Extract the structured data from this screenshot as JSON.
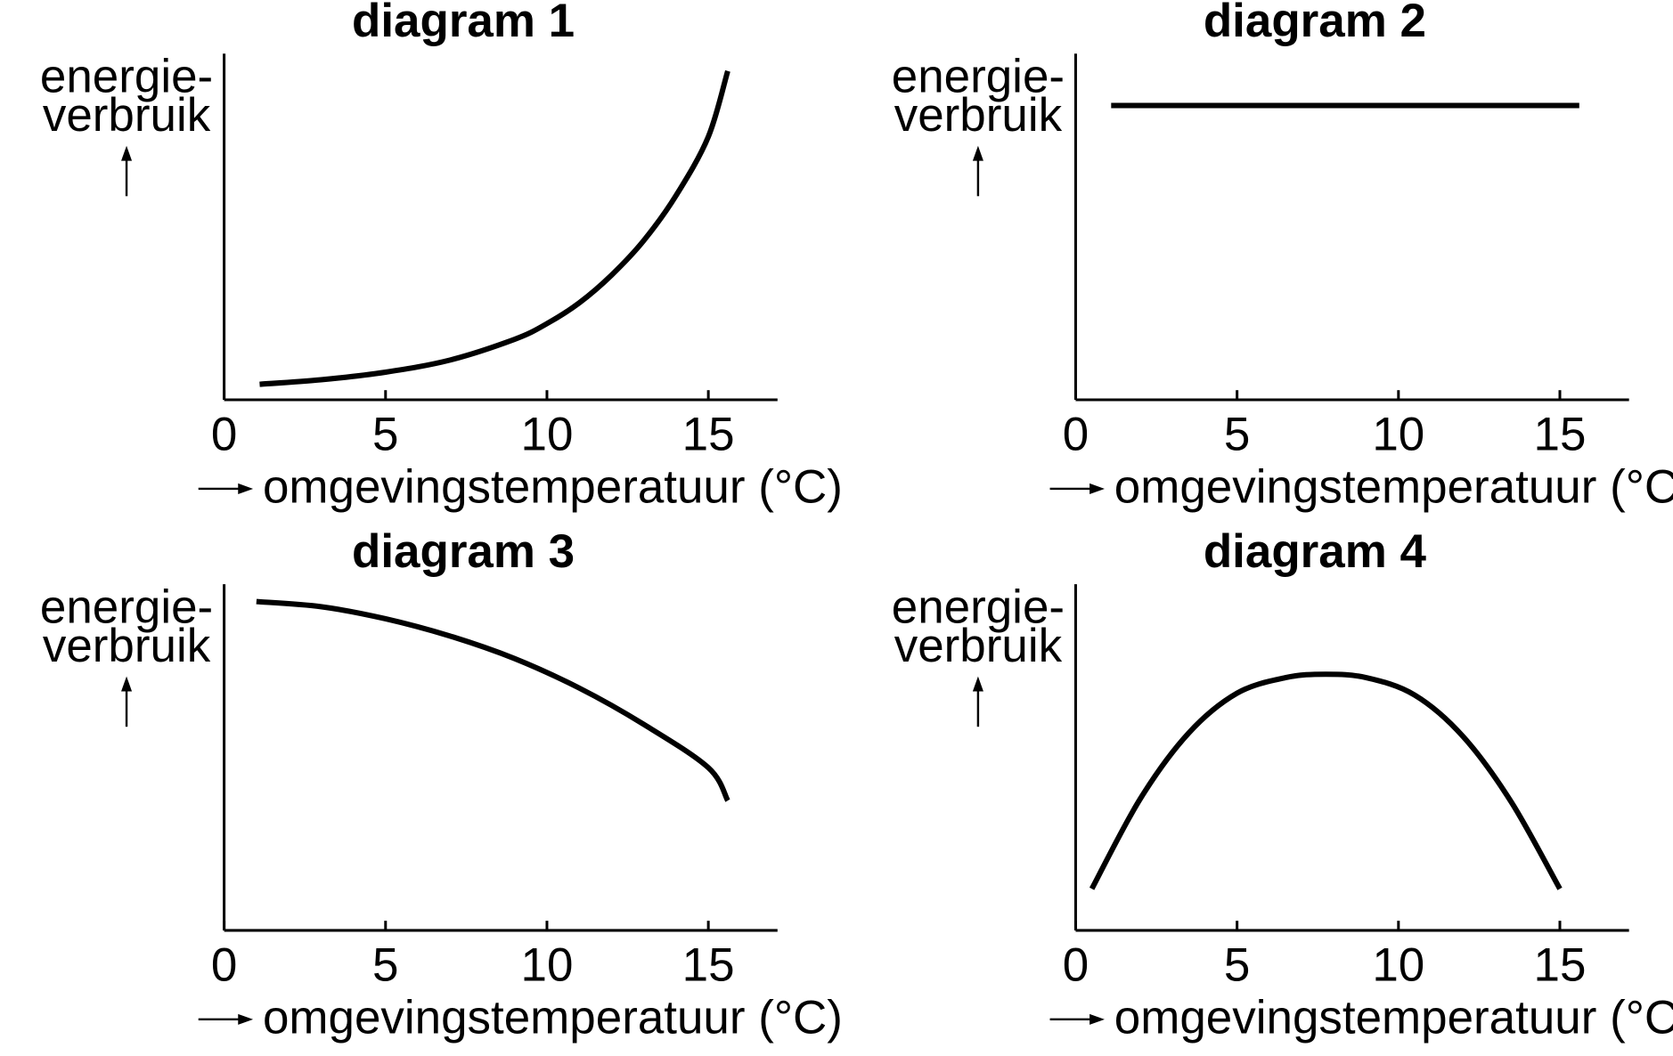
{
  "chart_data": [
    {
      "type": "line",
      "title": "diagram 1",
      "ylabel": [
        "energie-",
        "verbruik"
      ],
      "xlabel": "omgevingstemperatuur (°C)",
      "xlim": [
        0,
        17
      ],
      "ylim": [
        0,
        100
      ],
      "xticks": [
        "0",
        "5",
        "10",
        "15"
      ],
      "series": [
        {
          "x": [
            1.1,
            3,
            5,
            7,
            9,
            10,
            11,
            12,
            13,
            14,
            15,
            15.6
          ],
          "y": [
            4.5,
            5.8,
            8,
            11.5,
            17.5,
            22,
            28,
            36,
            46,
            59,
            76,
            95
          ]
        }
      ]
    },
    {
      "type": "line",
      "title": "diagram 2",
      "ylabel": [
        "energie-",
        "verbruik"
      ],
      "xlabel": "omgevingstemperatuur (°C)",
      "xlim": [
        0,
        17
      ],
      "ylim": [
        0,
        100
      ],
      "xticks": [
        "0",
        "5",
        "10",
        "15"
      ],
      "series": [
        {
          "x": [
            1.1,
            15.6
          ],
          "y": [
            85,
            85
          ]
        }
      ]
    },
    {
      "type": "line",
      "title": "diagram 3",
      "ylabel": [
        "energie-",
        "verbruik"
      ],
      "xlabel": "omgevingstemperatuur (°C)",
      "xlim": [
        0,
        17
      ],
      "ylim": [
        0,
        100
      ],
      "xticks": [
        "0",
        "5",
        "10",
        "15"
      ],
      "series": [
        {
          "x": [
            1,
            3,
            5,
            7,
            9,
            11,
            13,
            15,
            15.6
          ],
          "y": [
            95,
            93.5,
            90,
            85,
            78.5,
            70,
            59.5,
            47,
            37.5
          ]
        }
      ]
    },
    {
      "type": "line",
      "title": "diagram 4",
      "ylabel": [
        "energie-",
        "verbruik"
      ],
      "xlabel": "omgevingstemperatuur (°C)",
      "xlim": [
        0,
        17
      ],
      "ylim": [
        0,
        100
      ],
      "xticks": [
        "0",
        "5",
        "10",
        "15"
      ],
      "series": [
        {
          "x": [
            0.5,
            2,
            3.5,
            5,
            6.5,
            7.75,
            9,
            10.5,
            12,
            13.5,
            15
          ],
          "y": [
            12,
            38,
            57,
            68.5,
            73,
            74,
            73,
            68,
            56,
            37,
            12
          ]
        }
      ]
    }
  ]
}
